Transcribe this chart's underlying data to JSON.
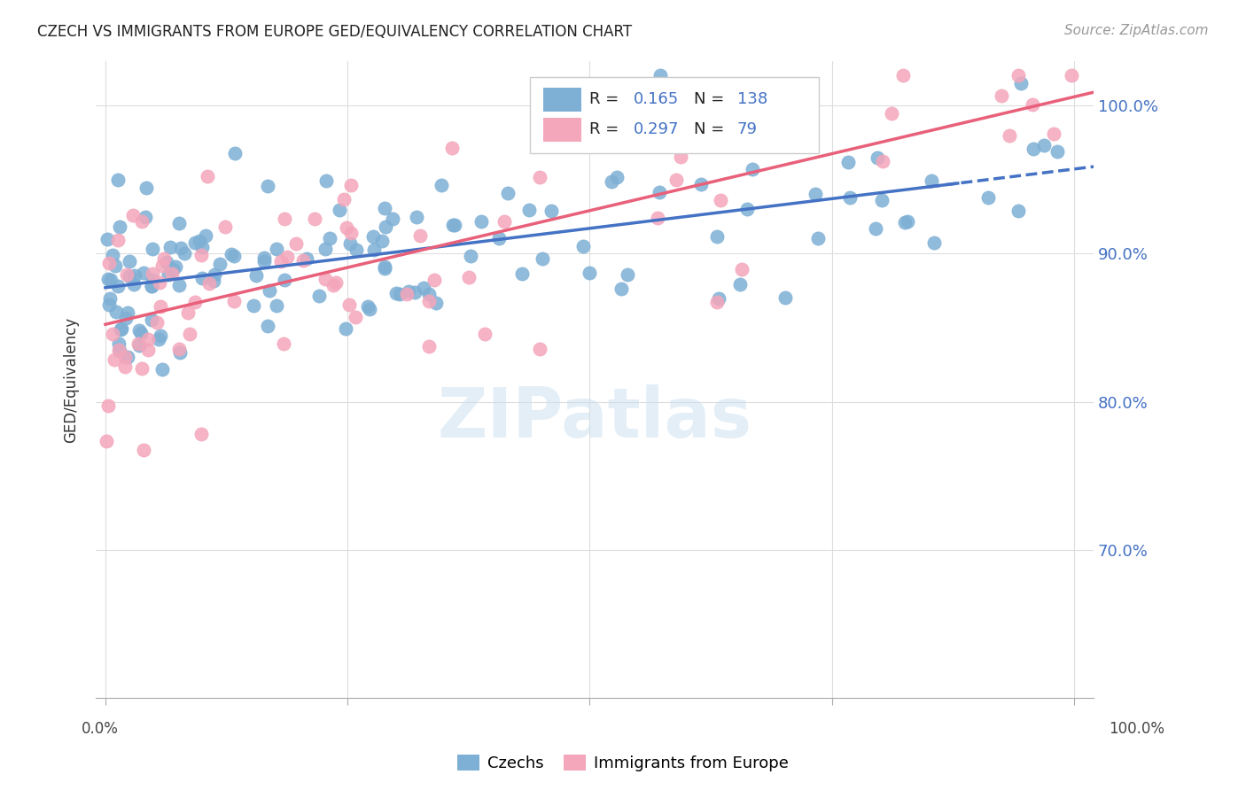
{
  "title": "CZECH VS IMMIGRANTS FROM EUROPE GED/EQUIVALENCY CORRELATION CHART",
  "source": "Source: ZipAtlas.com",
  "ylabel": "GED/Equivalency",
  "xlim": [
    0.0,
    1.0
  ],
  "ylim": [
    0.6,
    1.03
  ],
  "y_tick_labels": [
    "70.0%",
    "80.0%",
    "90.0%",
    "100.0%"
  ],
  "y_tick_positions": [
    0.7,
    0.8,
    0.9,
    1.0
  ],
  "czechs_color": "#7EB0D5",
  "immigrants_color": "#F4A6BB",
  "czechs_line_color": "#4472C4",
  "immigrants_line_color": "#E8607A",
  "R_czechs": 0.165,
  "N_czechs": 138,
  "R_immigrants": 0.297,
  "N_immigrants": 79,
  "legend_label_czechs": "Czechs",
  "legend_label_immigrants": "Immigrants from Europe",
  "watermark": "ZIPatlas",
  "background_color": "#ffffff",
  "grid_color": "#dddddd"
}
